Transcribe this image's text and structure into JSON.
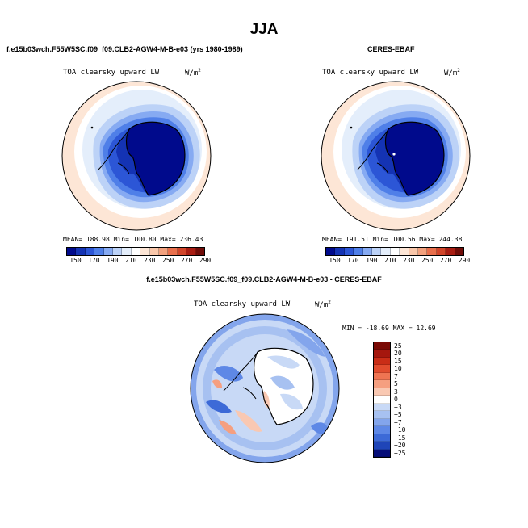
{
  "title": "JJA",
  "panels": [
    {
      "case_name": "f.e15b03wch.F55W5SC.f09_f09.CLB2-AGW4-M-B-e03 (yrs 1980-1989)",
      "variable": "TOA clearsky upward LW",
      "units_base": "W/m",
      "units_exp": "2",
      "stats_text": "MEAN= 188.98   Min= 100.80   Max= 236.43",
      "colorbar_labels": [
        "150",
        "170",
        "190",
        "210",
        "230",
        "250",
        "270",
        "290"
      ]
    },
    {
      "case_name": "CERES-EBAF",
      "variable": "TOA clearsky upward LW",
      "units_base": "W/m",
      "units_exp": "2",
      "stats_text": "MEAN= 191.51   Min= 100.56   Max= 244.38",
      "colorbar_labels": [
        "150",
        "170",
        "190",
        "210",
        "230",
        "250",
        "270",
        "290"
      ]
    }
  ],
  "diff": {
    "case_name": "f.e15b03wch.F55W5SC.f09_f09.CLB2-AGW4-M-B-e03 - CERES-EBAF",
    "variable": "TOA clearsky upward LW",
    "units_base": "W/m",
    "units_exp": "2",
    "minmax_text": "MIN = -18.69 MAX =  12.69",
    "colorbar_labels": [
      "25",
      "20",
      "15",
      "10",
      "7",
      "5",
      "3",
      "0",
      "−3",
      "−5",
      "−7",
      "−10",
      "−15",
      "−20",
      "−25"
    ]
  },
  "colors": {
    "abs_palette": [
      "#000a8c",
      "#1433b4",
      "#2c56d6",
      "#4f7fe8",
      "#86aaf2",
      "#bcd2f7",
      "#e4eefb",
      "#ffffff",
      "#fde6d6",
      "#f9c7aa",
      "#f2a17e",
      "#e86f4c",
      "#d1452a",
      "#a81d13",
      "#700c08"
    ],
    "diff_palette": [
      "#7a0a05",
      "#a5170e",
      "#c92d17",
      "#e14c2e",
      "#ef7452",
      "#f59f80",
      "#f9c8b2",
      "#ffffff",
      "#c8d9f6",
      "#a7c1f1",
      "#83a5ec",
      "#5e88e6",
      "#3d6ad7",
      "#1f45b8",
      "#050d78"
    ]
  }
}
